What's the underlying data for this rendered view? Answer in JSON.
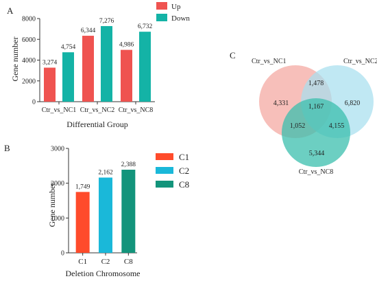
{
  "chart_data": [
    {
      "panel_label": "A",
      "type": "bar",
      "categories": [
        "Ctr_vs_NC1",
        "Ctr_vs_NC2",
        "Ctr_vs_NC8"
      ],
      "series": [
        {
          "name": "Up",
          "color": "#ef5350",
          "values": [
            3274,
            6344,
            4986
          ],
          "labels": [
            "3,274",
            "6,344",
            "4,986"
          ]
        },
        {
          "name": "Down",
          "color": "#14b3a6",
          "values": [
            4754,
            7276,
            6732
          ],
          "labels": [
            "4,754",
            "7,276",
            "6,732"
          ]
        }
      ],
      "xlabel": "Differential Group",
      "ylabel": "Gene number",
      "ylim": [
        0,
        8000
      ],
      "yticks": [
        "0",
        "2000",
        "4000",
        "6000",
        "8000"
      ],
      "legend": "top-right",
      "grid": false
    },
    {
      "panel_label": "B",
      "type": "bar",
      "categories": [
        "C1",
        "C2",
        "C8"
      ],
      "values": [
        1749,
        2162,
        2388
      ],
      "labels": [
        "1,749",
        "2,162",
        "2,388"
      ],
      "colors": [
        "#ff4b2b",
        "#1ab8d9",
        "#13947b"
      ],
      "legend_entries": [
        "C1",
        "C2",
        "C8"
      ],
      "xlabel": "Deletion Chromosome",
      "ylabel": "Gene number",
      "ylim": [
        0,
        3000
      ],
      "yticks": [
        "0",
        "1000",
        "2000",
        "3000"
      ],
      "legend": "top-right",
      "grid": false
    },
    {
      "panel_label": "C",
      "type": "venn",
      "sets": [
        {
          "name": "Ctr_vs_NC1",
          "color": "#f4a6a0"
        },
        {
          "name": "Ctr_vs_NC2",
          "color": "#a8dfee"
        },
        {
          "name": "Ctr_vs_NC8",
          "color": "#3bbfae"
        }
      ],
      "regions": {
        "only_1": "4,331",
        "only_2": "6,820",
        "only_3": "5,344",
        "r12": "1,478",
        "r13": "1,052",
        "r23": "4,155",
        "r123": "1,167"
      }
    }
  ]
}
